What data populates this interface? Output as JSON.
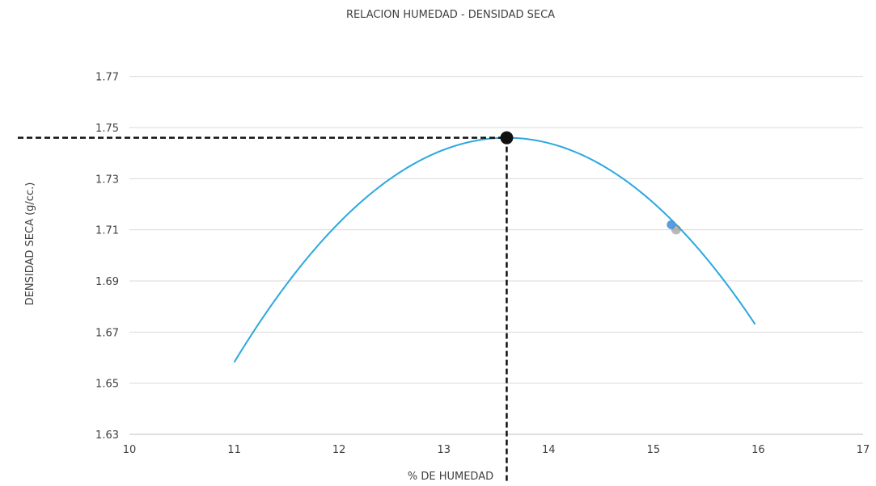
{
  "chart_data": {
    "type": "scatter",
    "title": "RELACION HUMEDAD - DENSIDAD SECA",
    "xlabel": "% DE HUMEDAD",
    "ylabel": "DENSIDAD SECA (g/cc.)",
    "xlim": [
      10,
      17
    ],
    "ylim": [
      1.63,
      1.78
    ],
    "x_ticks": [
      10,
      11,
      12,
      13,
      14,
      15,
      16,
      17
    ],
    "y_ticks": [
      1.63,
      1.65,
      1.67,
      1.69,
      1.71,
      1.73,
      1.75,
      1.77
    ],
    "grid": "horizontal",
    "series": [
      {
        "kind": "curve",
        "color": "#29a8e0",
        "x_range": [
          11,
          15.97
        ],
        "vertex": [
          13.6,
          1.746
        ],
        "points": [
          [
            11.0,
            1.6582
          ],
          [
            11.5,
            1.6902
          ],
          [
            12.0,
            1.715
          ],
          [
            12.5,
            1.7324
          ],
          [
            13.0,
            1.7426
          ],
          [
            13.6,
            1.746
          ],
          [
            14.0,
            1.7443
          ],
          [
            14.5,
            1.7374
          ],
          [
            15.0,
            1.7222
          ],
          [
            15.5,
            1.7005
          ],
          [
            15.97,
            1.6761
          ]
        ]
      },
      {
        "kind": "points",
        "color": "#4a90d9",
        "points": [
          [
            15.17,
            1.712
          ]
        ]
      }
    ],
    "optimum": {
      "x": 13.6,
      "y": 1.746,
      "marker_color": "#111111",
      "guide_color": "#111111",
      "guide_style": "dashed"
    }
  }
}
